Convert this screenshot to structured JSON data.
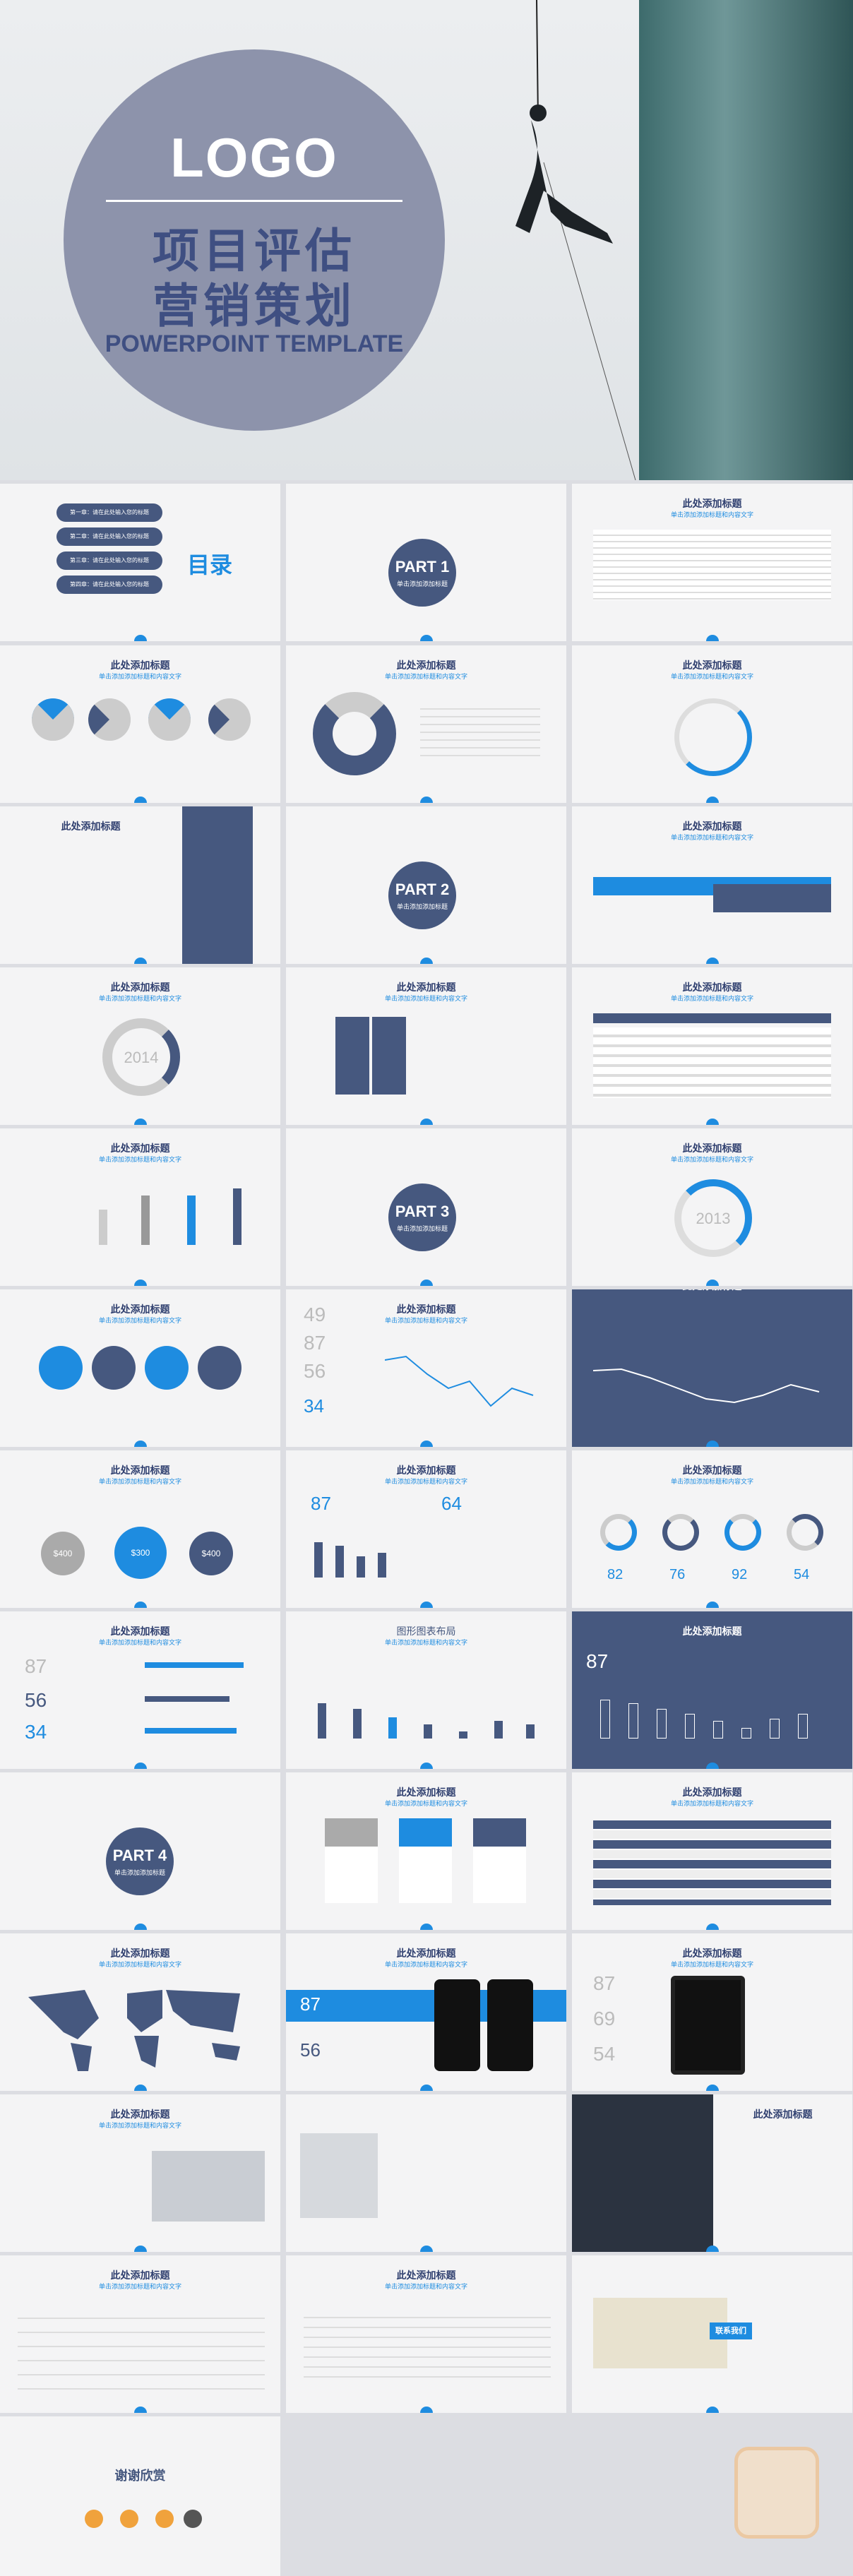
{
  "cover": {
    "logo": "LOGO",
    "title_line1": "项目评估",
    "title_line2": "营销策划",
    "subtitle": "POWERPOINT TEMPLATE"
  },
  "common": {
    "title": "此处添加标题",
    "subtitle": "单击添加添加标题和内容文字"
  },
  "toc": {
    "label": "目录",
    "items": [
      "第一章：请在此处输入您的标题",
      "第二章：请在此处输入您的标题",
      "第三章：请在此处输入您的标题",
      "第四章：请在此处输入您的标题"
    ]
  },
  "parts": {
    "part1": "PART 1",
    "part2": "PART 2",
    "part3": "PART 3",
    "part4": "PART 4",
    "part_sub": "单击添加添加标题"
  },
  "year": "2014",
  "year2": "2013",
  "percent": {
    "p1": "82",
    "p2": "76",
    "p3": "92",
    "p4": "54"
  },
  "stats": {
    "s49": "49",
    "s87": "87",
    "s56": "56",
    "s34": "34",
    "s64": "64",
    "s69": "69",
    "s54": "54"
  },
  "money": {
    "m1": "$400",
    "m2": "$300",
    "m3": "$400"
  },
  "layout_title": "图形图表布局",
  "contact": "联系我们",
  "thanks": "谢谢欣赏"
}
